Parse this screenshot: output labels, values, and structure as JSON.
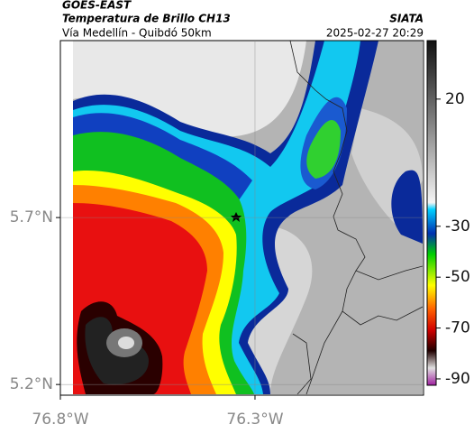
{
  "header": {
    "source": "GOES-EAST",
    "title": "Temperatura de Brillo CH13",
    "subtitle": "Vía Medellín - Quibdó 50km",
    "agency": "SIATA",
    "datetime": "2025-02-27 20:29"
  },
  "map": {
    "xlim": [
      -76.8,
      -75.867
    ],
    "ylim": [
      5.168,
      6.23
    ],
    "xticks": [
      {
        "value": -76.8,
        "label": "76.8°W"
      },
      {
        "value": -76.3,
        "label": "76.3°W"
      }
    ],
    "yticks": [
      {
        "value": 5.7,
        "label": "5.7°N"
      },
      {
        "value": 5.2,
        "label": "5.2°N"
      }
    ]
  },
  "colorbar": {
    "lim": [
      -92.5,
      43
    ],
    "ticks": [
      20,
      -30,
      -50,
      -70,
      -90
    ]
  }
}
